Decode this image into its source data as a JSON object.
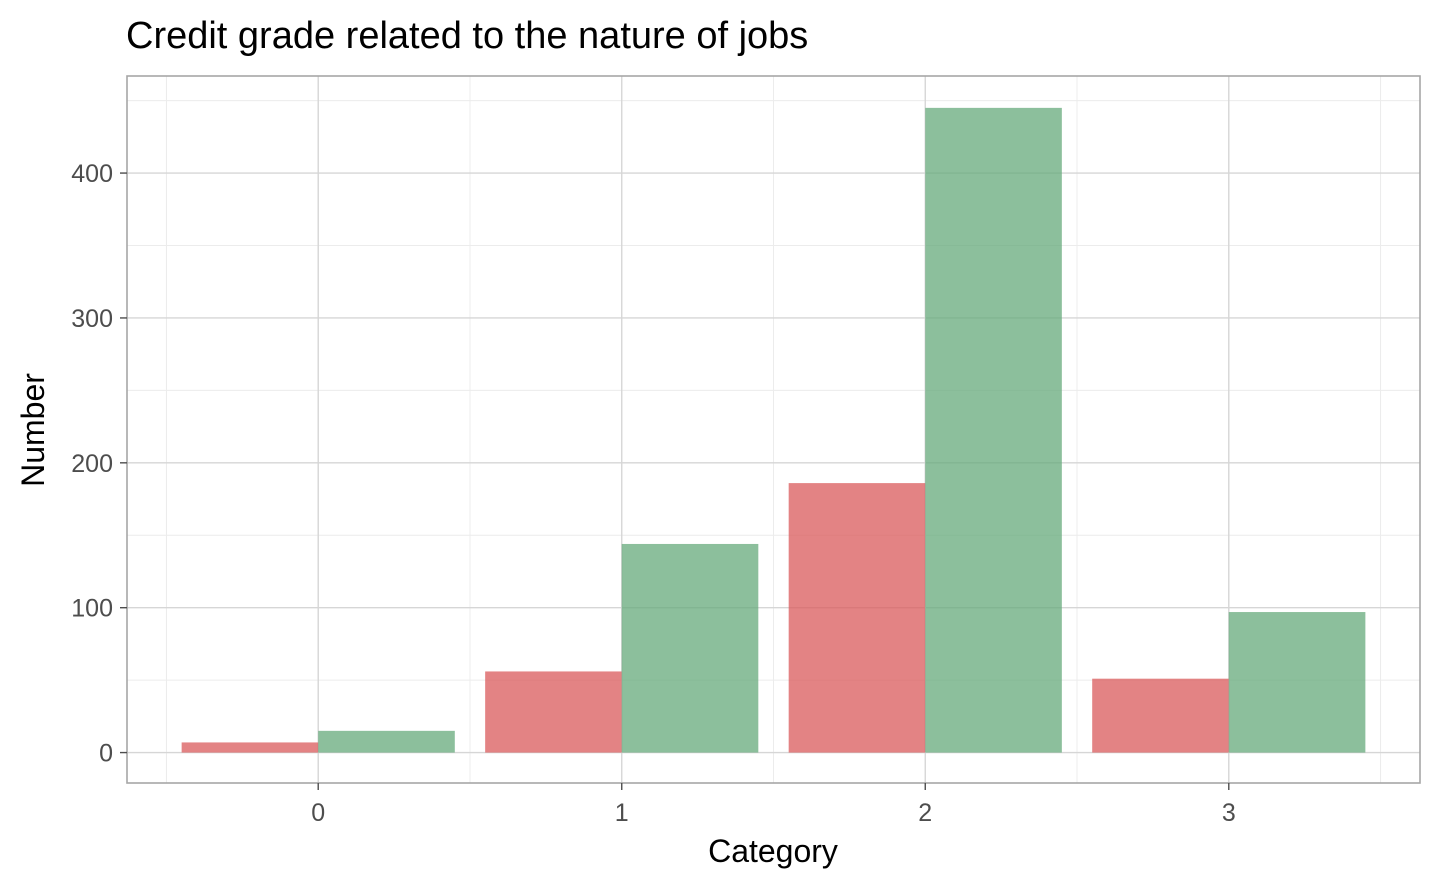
{
  "chart_data": {
    "type": "bar",
    "title": "Credit grade related to the nature of jobs",
    "xlabel": "Category",
    "ylabel": "Number",
    "categories": [
      "0",
      "1",
      "2",
      "3"
    ],
    "x": [
      0,
      1,
      2,
      3
    ],
    "series": [
      {
        "values": [
          7,
          56,
          186,
          51
        ],
        "color": "#d9595b"
      },
      {
        "values": [
          15,
          144,
          445,
          97
        ],
        "color": "#66a97b"
      }
    ],
    "ylim": [
      -21,
      467
    ],
    "xlim": [
      -0.63,
      3.63
    ],
    "yticks": [
      0,
      100,
      200,
      300,
      400
    ],
    "ytick_labels": [
      "0",
      "100",
      "200",
      "300",
      "400"
    ],
    "xtick_labels": [
      "0",
      "1",
      "2",
      "3"
    ],
    "bar_opacity": 0.75,
    "grid": true,
    "legend": "none"
  }
}
